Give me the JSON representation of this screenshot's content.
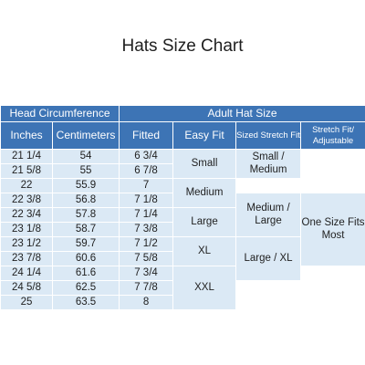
{
  "title": "Hats Size Chart",
  "header": {
    "group_head": "Head Circumference",
    "group_adult": "Adult Hat Size",
    "inches": "Inches",
    "centimeters": "Centimeters",
    "fitted": "Fitted",
    "easy_fit": "Easy Fit",
    "sized_stretch": "Sized Stretch Fit",
    "stretch_adjustable": "Stretch Fit/ Adjustable"
  },
  "rows": [
    {
      "inches": "21 1/4",
      "cm": "54",
      "fitted": "6 3/4"
    },
    {
      "inches": "21 5/8",
      "cm": "55",
      "fitted": "6 7/8"
    },
    {
      "inches": "22",
      "cm": "55.9",
      "fitted": "7"
    },
    {
      "inches": "22 3/8",
      "cm": "56.8",
      "fitted": "7 1/8"
    },
    {
      "inches": "22 3/4",
      "cm": "57.8",
      "fitted": "7 1/4"
    },
    {
      "inches": "23 1/8",
      "cm": "58.7",
      "fitted": "7 3/8"
    },
    {
      "inches": "23 1/2",
      "cm": "59.7",
      "fitted": "7 1/2"
    },
    {
      "inches": "23 7/8",
      "cm": "60.6",
      "fitted": "7 5/8"
    },
    {
      "inches": "24 1/4",
      "cm": "61.6",
      "fitted": "7 3/4"
    },
    {
      "inches": "24 5/8",
      "cm": "62.5",
      "fitted": "7 7/8"
    },
    {
      "inches": "25",
      "cm": "63.5",
      "fitted": "8"
    }
  ],
  "easy_fit": [
    "Small",
    "Medium",
    "Large",
    "XL",
    "XXL"
  ],
  "sized_stretch": [
    "Small / Medium",
    "Medium / Large",
    "Large / XL"
  ],
  "one_size": "One Size Fits Most",
  "colors": {
    "header_bg": "#3d74b5",
    "cell_bg": "#dbe9f5",
    "header_text": "#ffffff"
  }
}
